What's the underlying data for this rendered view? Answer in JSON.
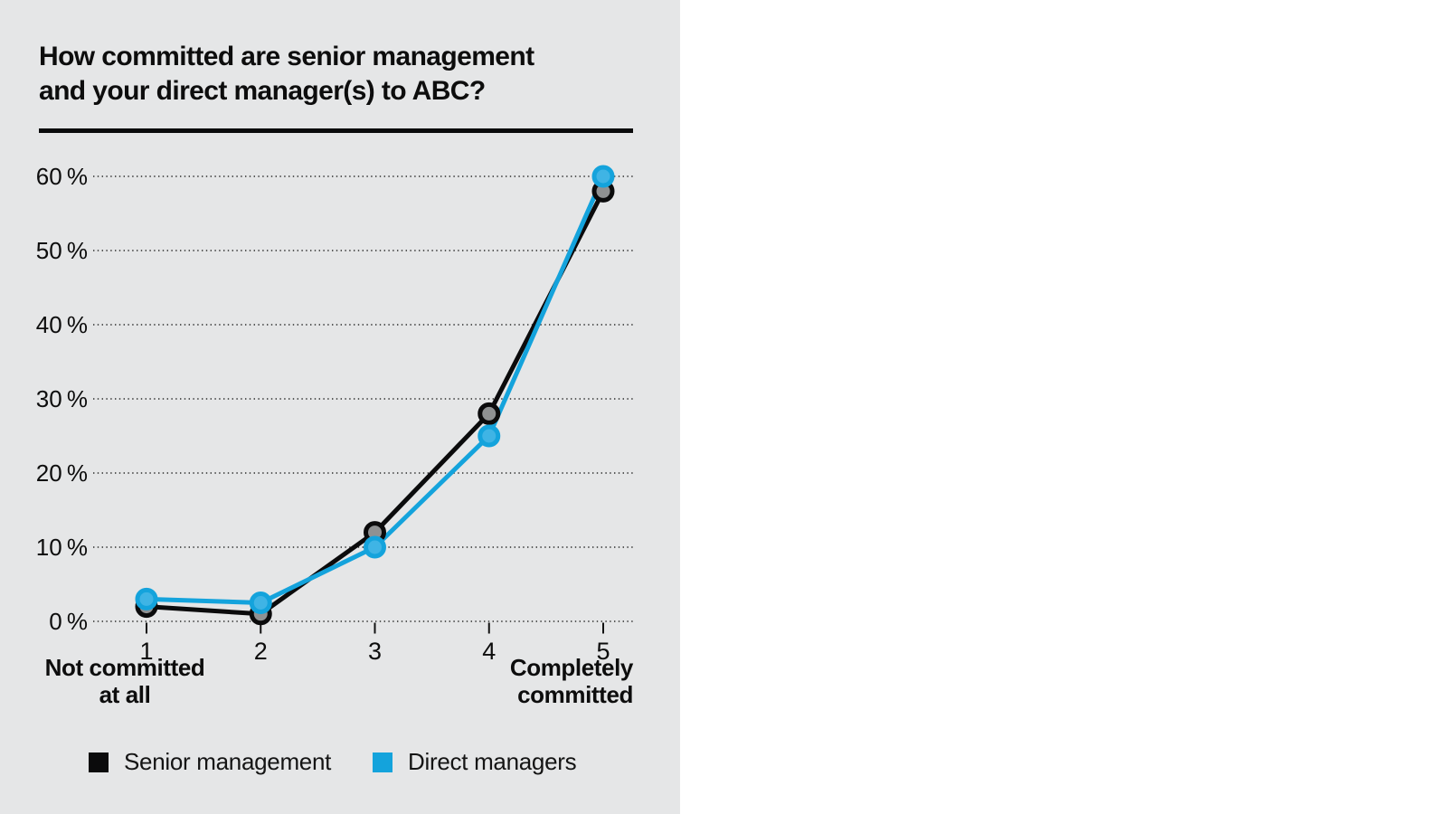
{
  "panel": {
    "background": "#e5e6e7",
    "text_color": "#0d0d0d"
  },
  "chart_data": {
    "type": "line",
    "title_lines": [
      "How committed are senior management",
      "and your direct manager(s) to ABC?"
    ],
    "categories": [
      "1",
      "2",
      "3",
      "4",
      "5"
    ],
    "series": [
      {
        "name": "Senior management",
        "color": "#0b0b0c",
        "marker_fill": "#8f9192",
        "values": [
          2,
          1,
          12,
          28,
          58
        ]
      },
      {
        "name": "Direct managers",
        "color": "#14a3dc",
        "marker_fill": "#3fb4e5",
        "values": [
          3,
          2.5,
          10,
          25,
          60
        ]
      }
    ],
    "ylim": [
      0,
      60
    ],
    "yticks": [
      0,
      10,
      20,
      30,
      40,
      50,
      60
    ],
    "ytick_labels": [
      "0 %",
      "10 %",
      "20 %",
      "30 %",
      "40 %",
      "50 %",
      "60 %"
    ],
    "grid": "horizontal-dotted",
    "legend_position": "bottom",
    "x_left_caption_lines": [
      "Not committed",
      "at all"
    ],
    "x_right_caption_lines": [
      "Completely",
      "committed"
    ]
  }
}
